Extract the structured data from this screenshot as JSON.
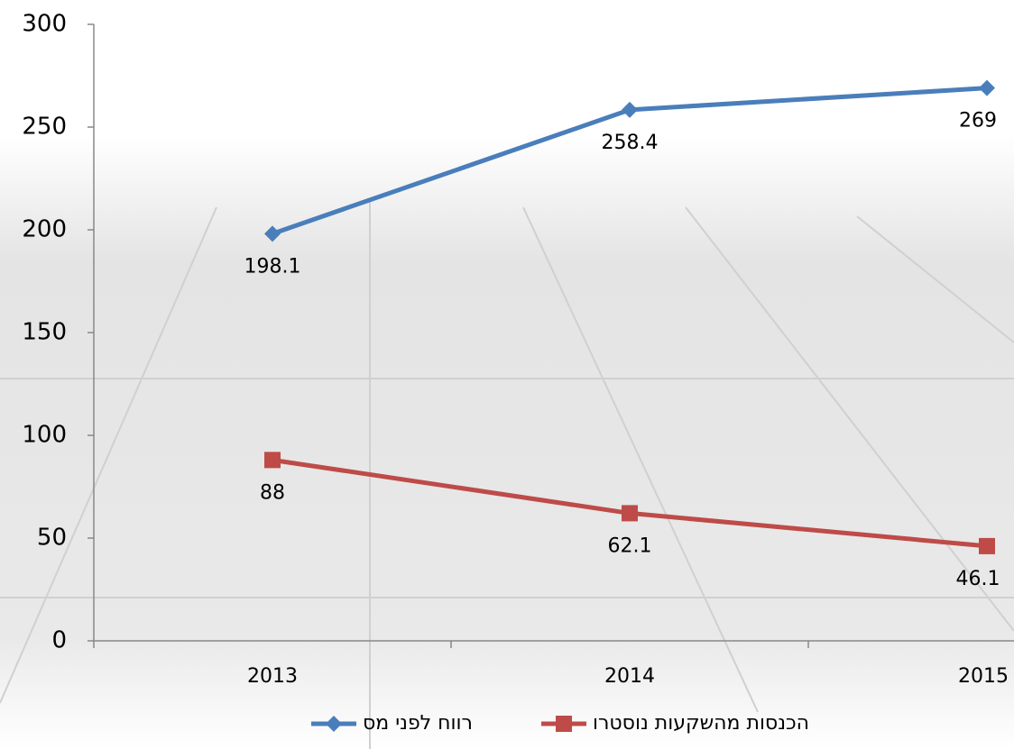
{
  "chart_data": {
    "type": "line",
    "categories": [
      "2013",
      "2014",
      "2015"
    ],
    "series": [
      {
        "name": "הכנסות מהשקעות נוסטרו",
        "color": "#be4b48",
        "marker": "square",
        "values": [
          88,
          62.1,
          46.1
        ]
      },
      {
        "name": "רווח לפני מס",
        "color": "#4a7ebb",
        "marker": "diamond",
        "values": [
          198.1,
          258.4,
          269
        ]
      }
    ],
    "ylim": [
      0,
      300
    ],
    "yticks": [
      0,
      50,
      100,
      150,
      200,
      250,
      300
    ],
    "grid": false,
    "legend": "bottom"
  }
}
